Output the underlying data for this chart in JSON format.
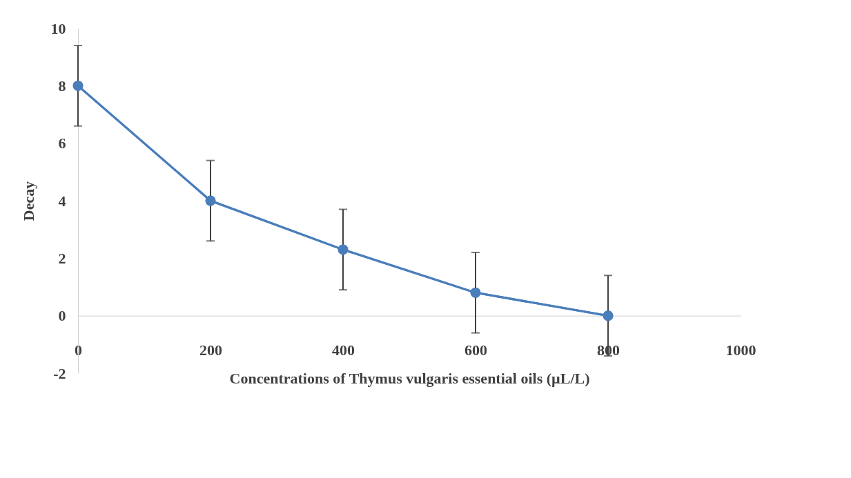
{
  "chart_data": {
    "type": "line",
    "xlabel": "Concentrations of Thymus vulgaris essential oils (µL/L)",
    "ylabel": "Decay",
    "x": [
      0,
      200,
      400,
      600,
      800
    ],
    "series": [
      {
        "color": "#4a7ebb",
        "values": [
          8.0,
          4.0,
          2.3,
          0.8,
          0.0
        ],
        "errors": [
          1.4,
          1.4,
          1.4,
          1.4,
          1.4
        ]
      }
    ],
    "xlim": [
      0,
      1000
    ],
    "xticks": [
      0,
      200,
      400,
      600,
      800,
      1000
    ],
    "ylim": [
      -2,
      10
    ],
    "yticks": [
      -2,
      0,
      2,
      4,
      6,
      8,
      10
    ],
    "marker": "circle",
    "grid": false
  }
}
